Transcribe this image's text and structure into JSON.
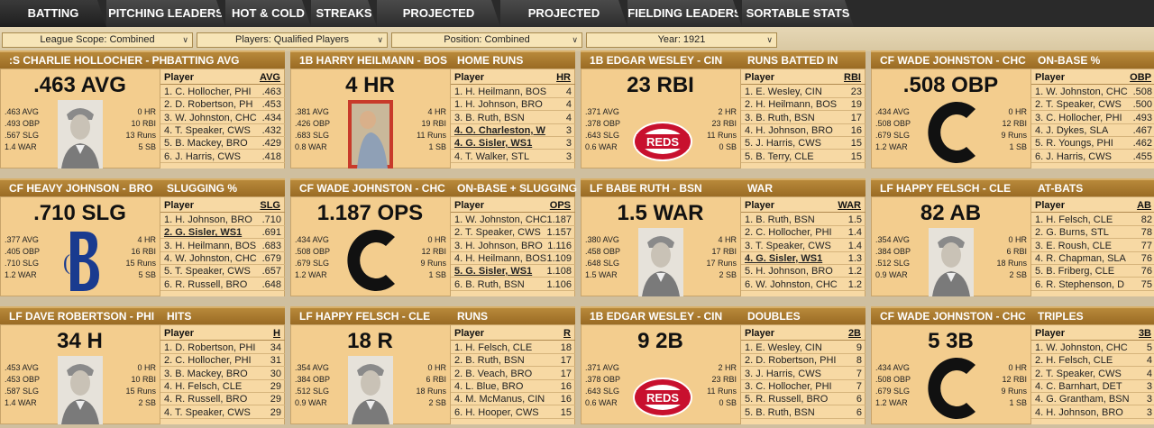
{
  "tabs": [
    "BATTING LEADERS",
    "PITCHING LEADERS",
    "HOT & COLD",
    "STREAKS",
    "PROJECTED BATTING",
    "PROJECTED PITCHING",
    "FIELDING LEADERS",
    "SORTABLE STATS"
  ],
  "filters": [
    "League Scope: Combined",
    "Players: Qualified Players",
    "Position: Combined",
    "Year: 1921"
  ],
  "cards": [
    {
      "player": ":S CHARLIE HOLLOCHER - PH",
      "stat": "BATTING AVG",
      "big": ".463 AVG",
      "left": [
        ".463 AVG",
        ".493 OBP",
        ".567 SLG",
        "1.4 WAR"
      ],
      "right": [
        "0 HR",
        "10 RBI",
        "13 Runs",
        "5 SB"
      ],
      "photo": "player-photo",
      "col": "AVG",
      "rows": [
        [
          "1. C. Hollocher, PHI",
          ".463"
        ],
        [
          "2. D. Robertson, PH",
          ".453"
        ],
        [
          "3. W. Johnston, CHC",
          ".434"
        ],
        [
          "4. T. Speaker, CWS",
          ".432"
        ],
        [
          "5. B. Mackey, BRO",
          ".429"
        ],
        [
          "6. J. Harris, CWS",
          ".418"
        ]
      ],
      "bold": []
    },
    {
      "player": "1B HARRY HEILMANN - BOS",
      "stat": "HOME RUNS",
      "big": "4 HR",
      "left": [
        ".381 AVG",
        ".426 OBP",
        ".683 SLG",
        "0.8 WAR"
      ],
      "right": [
        "4 HR",
        "19 RBI",
        "11 Runs",
        "1 SB"
      ],
      "photo": "player-card-photo",
      "col": "HR",
      "rows": [
        [
          "1. H. Heilmann, BOS",
          "4"
        ],
        [
          "1. H. Johnson, BRO",
          "4"
        ],
        [
          "3. B. Ruth, BSN",
          "4"
        ],
        [
          "4. O. Charleston, W",
          "3"
        ],
        [
          "4. G. Sisler, WS1",
          "3"
        ],
        [
          "4. T. Walker, STL",
          "3"
        ]
      ],
      "bold": [
        3,
        4
      ]
    },
    {
      "player": "1B EDGAR WESLEY - CIN",
      "stat": "RUNS BATTED IN",
      "big": "23 RBI",
      "left": [
        ".371 AVG",
        ".378 OBP",
        ".643 SLG",
        "0.6 WAR"
      ],
      "right": [
        "2 HR",
        "23 RBI",
        "11 Runs",
        "0 SB"
      ],
      "photo": "reds-logo",
      "col": "RBI",
      "rows": [
        [
          "1. E. Wesley, CIN",
          "23"
        ],
        [
          "2. H. Heilmann, BOS",
          "19"
        ],
        [
          "3. B. Ruth, BSN",
          "17"
        ],
        [
          "4. H. Johnson, BRO",
          "16"
        ],
        [
          "5. J. Harris, CWS",
          "15"
        ],
        [
          "5. B. Terry, CLE",
          "15"
        ]
      ],
      "bold": []
    },
    {
      "player": "CF WADE JOHNSTON - CHC",
      "stat": "ON-BASE %",
      "big": ".508 OBP",
      "left": [
        ".434 AVG",
        ".508 OBP",
        ".679 SLG",
        "1.2 WAR"
      ],
      "right": [
        "0 HR",
        "12 RBI",
        "9 Runs",
        "1 SB"
      ],
      "photo": "cubs-logo",
      "col": "OBP",
      "rows": [
        [
          "1. W. Johnston, CHC",
          ".508"
        ],
        [
          "2. T. Speaker, CWS",
          ".500"
        ],
        [
          "3. C. Hollocher, PHI",
          ".493"
        ],
        [
          "4. J. Dykes, SLA",
          ".467"
        ],
        [
          "5. R. Youngs, PHI",
          ".462"
        ],
        [
          "6. J. Harris, CWS",
          ".455"
        ]
      ],
      "bold": []
    },
    {
      "player": "CF HEAVY JOHNSON - BRO",
      "stat": "SLUGGING %",
      "big": ".710 SLG",
      "left": [
        ".377 AVG",
        ".405 OBP",
        ".710 SLG",
        "1.2 WAR"
      ],
      "right": [
        "4 HR",
        "16 RBI",
        "15 Runs",
        "5 SB"
      ],
      "photo": "brooklyn-logo",
      "col": "SLG",
      "rows": [
        [
          "1. H. Johnson, BRO",
          ".710"
        ],
        [
          "2. G. Sisler, WS1",
          ".691"
        ],
        [
          "3. H. Heilmann, BOS",
          ".683"
        ],
        [
          "4. W. Johnston, CHC",
          ".679"
        ],
        [
          "5. T. Speaker, CWS",
          ".657"
        ],
        [
          "6. R. Russell, BRO",
          ".648"
        ]
      ],
      "bold": [
        1
      ]
    },
    {
      "player": "CF WADE JOHNSTON - CHC",
      "stat": "ON-BASE + SLUGGING",
      "big": "1.187 OPS",
      "left": [
        ".434 AVG",
        ".508 OBP",
        ".679 SLG",
        "1.2 WAR"
      ],
      "right": [
        "0 HR",
        "12 RBI",
        "9 Runs",
        "1 SB"
      ],
      "photo": "cubs-logo",
      "col": "OPS",
      "rows": [
        [
          "1. W. Johnston, CHC",
          "1.187"
        ],
        [
          "2. T. Speaker, CWS",
          "1.157"
        ],
        [
          "3. H. Johnson, BRO",
          "1.116"
        ],
        [
          "4. H. Heilmann, BOS",
          "1.109"
        ],
        [
          "5. G. Sisler, WS1",
          "1.108"
        ],
        [
          "6. B. Ruth, BSN",
          "1.106"
        ]
      ],
      "bold": [
        4
      ]
    },
    {
      "player": "LF BABE RUTH - BSN",
      "stat": "WAR",
      "big": "1.5 WAR",
      "left": [
        ".380 AVG",
        ".458 OBP",
        ".648 SLG",
        "1.5 WAR"
      ],
      "right": [
        "4 HR",
        "17 RBI",
        "17 Runs",
        "2 SB"
      ],
      "photo": "player-photo",
      "col": "WAR",
      "rows": [
        [
          "1. B. Ruth, BSN",
          "1.5"
        ],
        [
          "2. C. Hollocher, PHI",
          "1.4"
        ],
        [
          "3. T. Speaker, CWS",
          "1.4"
        ],
        [
          "4. G. Sisler, WS1",
          "1.3"
        ],
        [
          "5. H. Johnson, BRO",
          "1.2"
        ],
        [
          "6. W. Johnston, CHC",
          "1.2"
        ]
      ],
      "bold": [
        3
      ]
    },
    {
      "player": "LF HAPPY FELSCH - CLE",
      "stat": "AT-BATS",
      "big": "82 AB",
      "left": [
        ".354 AVG",
        ".384 OBP",
        ".512 SLG",
        "0.9 WAR"
      ],
      "right": [
        "0 HR",
        "6 RBI",
        "18 Runs",
        "2 SB"
      ],
      "photo": "player-photo",
      "col": "AB",
      "rows": [
        [
          "1. H. Felsch, CLE",
          "82"
        ],
        [
          "2. G. Burns, STL",
          "78"
        ],
        [
          "3. E. Roush, CLE",
          "77"
        ],
        [
          "4. R. Chapman, SLA",
          "76"
        ],
        [
          "5. B. Friberg, CLE",
          "76"
        ],
        [
          "6. R. Stephenson, D",
          "75"
        ]
      ],
      "bold": []
    },
    {
      "player": "LF DAVE ROBERTSON - PHI",
      "stat": "HITS",
      "big": "34 H",
      "left": [
        ".453 AVG",
        ".453 OBP",
        ".587 SLG",
        "1.4 WAR"
      ],
      "right": [
        "0 HR",
        "10 RBI",
        "15 Runs",
        "2 SB"
      ],
      "photo": "player-photo",
      "col": "H",
      "rows": [
        [
          "1. D. Robertson, PHI",
          "34"
        ],
        [
          "2. C. Hollocher, PHI",
          "31"
        ],
        [
          "3. B. Mackey, BRO",
          "30"
        ],
        [
          "4. H. Felsch, CLE",
          "29"
        ],
        [
          "4. R. Russell, BRO",
          "29"
        ],
        [
          "4. T. Speaker, CWS",
          "29"
        ]
      ],
      "bold": []
    },
    {
      "player": "LF HAPPY FELSCH - CLE",
      "stat": "RUNS",
      "big": "18 R",
      "left": [
        ".354 AVG",
        ".384 OBP",
        ".512 SLG",
        "0.9 WAR"
      ],
      "right": [
        "0 HR",
        "6 RBI",
        "18 Runs",
        "2 SB"
      ],
      "photo": "player-photo",
      "col": "R",
      "rows": [
        [
          "1. H. Felsch, CLE",
          "18"
        ],
        [
          "2. B. Ruth, BSN",
          "17"
        ],
        [
          "2. B. Veach, BRO",
          "17"
        ],
        [
          "4. L. Blue, BRO",
          "16"
        ],
        [
          "4. M. McManus, CIN",
          "16"
        ],
        [
          "6. H. Hooper, CWS",
          "15"
        ]
      ],
      "bold": []
    },
    {
      "player": "1B EDGAR WESLEY - CIN",
      "stat": "DOUBLES",
      "big": "9 2B",
      "left": [
        ".371 AVG",
        ".378 OBP",
        ".643 SLG",
        "0.6 WAR"
      ],
      "right": [
        "2 HR",
        "23 RBI",
        "11 Runs",
        "0 SB"
      ],
      "photo": "reds-logo",
      "col": "2B",
      "rows": [
        [
          "1. E. Wesley, CIN",
          "9"
        ],
        [
          "2. D. Robertson, PHI",
          "8"
        ],
        [
          "3. J. Harris, CWS",
          "7"
        ],
        [
          "3. C. Hollocher, PHI",
          "7"
        ],
        [
          "5. R. Russell, BRO",
          "6"
        ],
        [
          "5. B. Ruth, BSN",
          "6"
        ]
      ],
      "bold": []
    },
    {
      "player": "CF WADE JOHNSTON - CHC",
      "stat": "TRIPLES",
      "big": "5 3B",
      "left": [
        ".434 AVG",
        ".508 OBP",
        ".679 SLG",
        "1.2 WAR"
      ],
      "right": [
        "0 HR",
        "12 RBI",
        "9 Runs",
        "1 SB"
      ],
      "photo": "cubs-logo",
      "col": "3B",
      "rows": [
        [
          "1. W. Johnston, CHC",
          "5"
        ],
        [
          "2. H. Felsch, CLE",
          "4"
        ],
        [
          "2. T. Speaker, CWS",
          "4"
        ],
        [
          "4. C. Barnhart, DET",
          "3"
        ],
        [
          "4. G. Grantham, BSN",
          "3"
        ],
        [
          "4. H. Johnson, BRO",
          "3"
        ]
      ],
      "bold": []
    }
  ],
  "logo": {
    "reds": "REDS"
  },
  "colors": {
    "header": "#9a6b24",
    "panel": "#f3cd8e",
    "list": "#f7d9a4"
  }
}
